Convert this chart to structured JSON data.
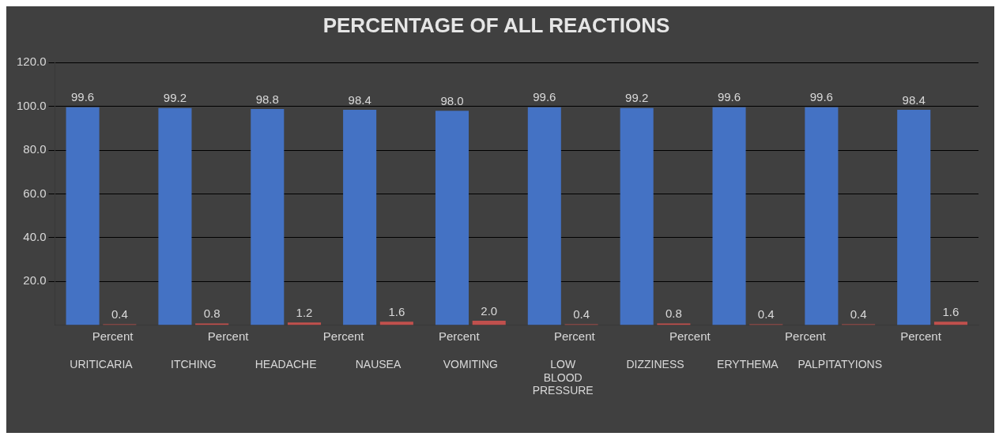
{
  "chart_data": {
    "type": "bar",
    "title": "PERCENTAGE OF ALL REACTIONS",
    "categories": [
      "URITICARIA",
      "ITCHING",
      "HEADACHE",
      "NAUSEA",
      "VOMITING",
      "LOW BLOOD PRESSURE",
      "DIZZINESS",
      "ERYTHEMA",
      "PALPITATYIONS",
      null
    ],
    "series": [
      {
        "color": "#4472c4",
        "values": [
          99.6,
          99.2,
          98.8,
          98.4,
          98.0,
          99.6,
          99.2,
          99.6,
          99.6,
          98.4
        ],
        "value_labels": [
          "99.6",
          "99.2",
          "98.8",
          "98.4",
          "98.0",
          "99.6",
          "99.2",
          "99.6",
          "99.6",
          "98.4"
        ]
      },
      {
        "color": "#c0504d",
        "values": [
          0.4,
          0.8,
          1.2,
          1.6,
          2.0,
          0.4,
          0.8,
          0.4,
          0.4,
          1.6
        ],
        "value_labels": [
          "0.4",
          "0.8",
          "1.2",
          "1.6",
          "2.0",
          "0.4",
          "0.8",
          "0.4",
          "0.4",
          "1.6"
        ]
      }
    ],
    "ylim": [
      0,
      120
    ],
    "yticks": [
      {
        "value": 20,
        "label": "20.0"
      },
      {
        "value": 40,
        "label": "40.0"
      },
      {
        "value": 60,
        "label": "60.0"
      },
      {
        "value": 80,
        "label": "80.0"
      },
      {
        "value": 100,
        "label": "100.0"
      },
      {
        "value": 120,
        "label": "120.0"
      }
    ],
    "annotations": [
      "Percent",
      "Percent",
      "Percent",
      "Percent",
      "Percent",
      "Percent",
      "Percent",
      "Percent"
    ],
    "grid": "y"
  }
}
